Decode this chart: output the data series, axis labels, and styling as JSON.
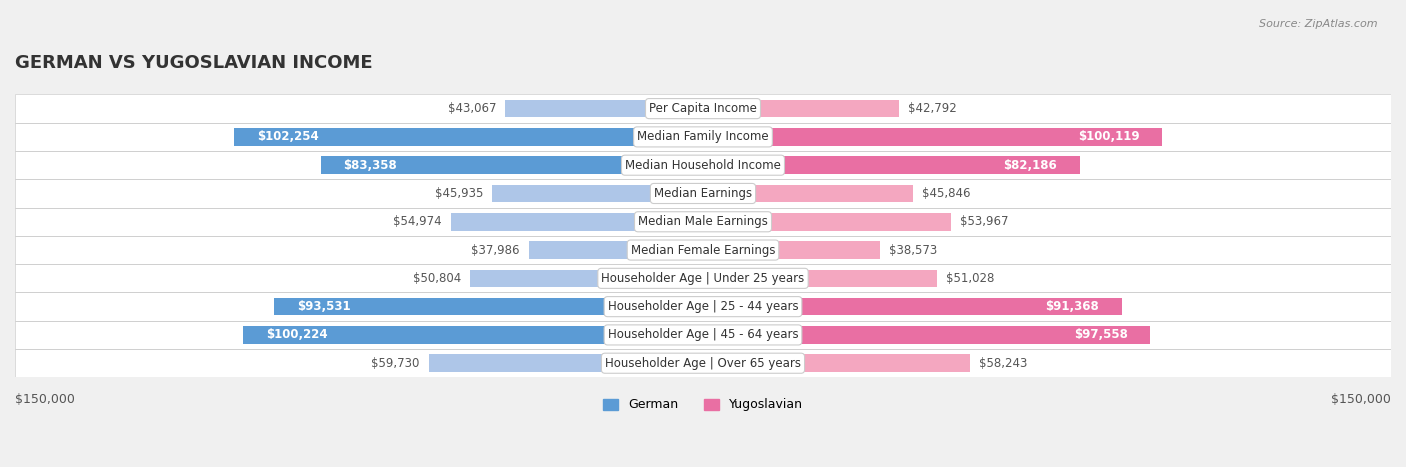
{
  "title": "GERMAN VS YUGOSLAVIAN INCOME",
  "source": "Source: ZipAtlas.com",
  "categories": [
    "Per Capita Income",
    "Median Family Income",
    "Median Household Income",
    "Median Earnings",
    "Median Male Earnings",
    "Median Female Earnings",
    "Householder Age | Under 25 years",
    "Householder Age | 25 - 44 years",
    "Householder Age | 45 - 64 years",
    "Householder Age | Over 65 years"
  ],
  "german_values": [
    43067,
    102254,
    83358,
    45935,
    54974,
    37986,
    50804,
    93531,
    100224,
    59730
  ],
  "yugoslavian_values": [
    42792,
    100119,
    82186,
    45846,
    53967,
    38573,
    51028,
    91368,
    97558,
    58243
  ],
  "german_labels": [
    "$43,067",
    "$102,254",
    "$83,358",
    "$45,935",
    "$54,974",
    "$37,986",
    "$50,804",
    "$93,531",
    "$100,224",
    "$59,730"
  ],
  "yugoslavian_labels": [
    "$42,792",
    "$100,119",
    "$82,186",
    "$45,846",
    "$53,967",
    "$38,573",
    "$51,028",
    "$91,368",
    "$97,558",
    "$58,243"
  ],
  "german_color_light": "#aec6e8",
  "german_color_dark": "#5b9bd5",
  "yugoslav_color_light": "#f4a7c0",
  "yugoslav_color_dark": "#e96fa3",
  "max_value": 150000,
  "background_color": "#f0f0f0",
  "row_bg_color": "#f9f9f9",
  "label_box_color": "#ffffff",
  "title_fontsize": 13,
  "label_fontsize": 8.5,
  "category_fontsize": 8.5,
  "axis_fontsize": 9
}
